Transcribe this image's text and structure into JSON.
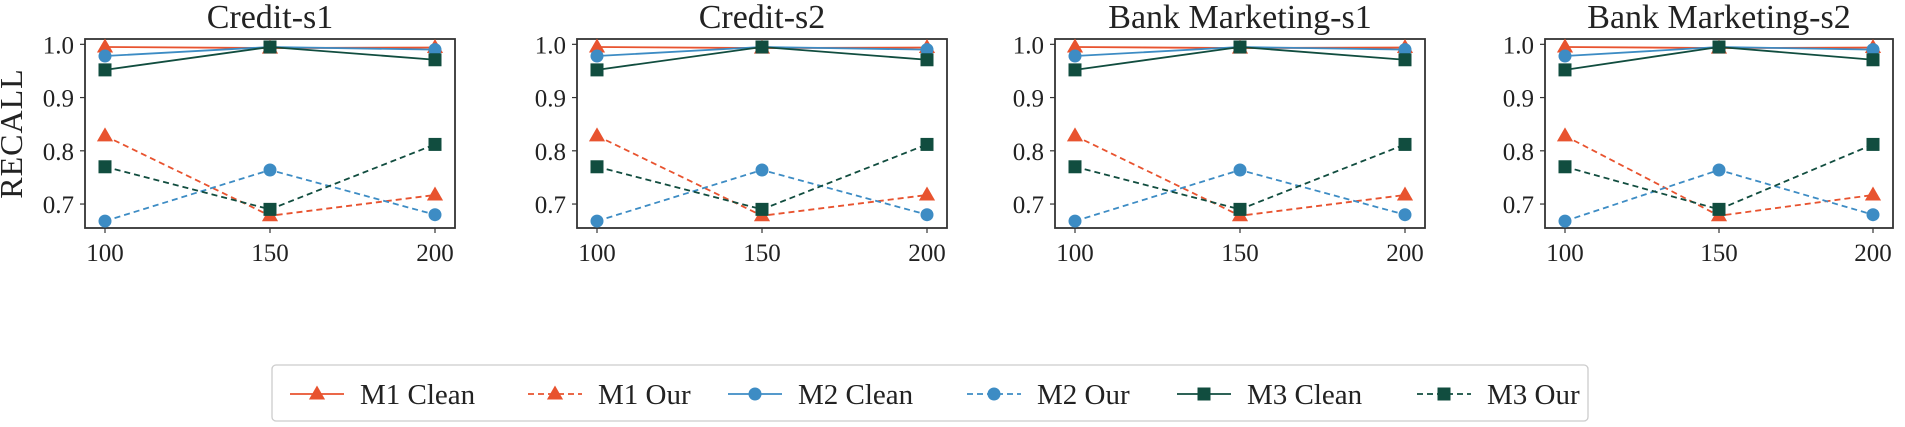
{
  "chart_data": [
    {
      "type": "line",
      "title": "Credit-s1",
      "xlabel": "",
      "ylabel": "RECALL",
      "x": [
        100,
        150,
        200
      ],
      "xticks": [
        "100",
        "150",
        "200"
      ],
      "yticks": [
        "0.7",
        "0.8",
        "0.9",
        "1.0"
      ],
      "xlim": [
        100,
        200
      ],
      "ylim": [
        0.655,
        1.01
      ],
      "series": [
        {
          "name": "M1 Clean",
          "values": [
            0.995,
            0.993,
            0.994
          ]
        },
        {
          "name": "M1 Our",
          "values": [
            0.828,
            0.678,
            0.717
          ]
        },
        {
          "name": "M2 Clean",
          "values": [
            0.978,
            0.995,
            0.99
          ]
        },
        {
          "name": "M2 Our",
          "values": [
            0.668,
            0.764,
            0.68
          ]
        },
        {
          "name": "M3 Clean",
          "values": [
            0.952,
            0.995,
            0.971
          ]
        },
        {
          "name": "M3 Our",
          "values": [
            0.77,
            0.69,
            0.812
          ]
        }
      ]
    },
    {
      "type": "line",
      "title": "Credit-s2",
      "xlabel": "",
      "ylabel": "",
      "x": [
        100,
        150,
        200
      ],
      "xticks": [
        "100",
        "150",
        "200"
      ],
      "yticks": [
        "0.7",
        "0.8",
        "0.9",
        "1.0"
      ],
      "xlim": [
        100,
        200
      ],
      "ylim": [
        0.655,
        1.01
      ],
      "series": [
        {
          "name": "M1 Clean",
          "values": [
            0.995,
            0.993,
            0.994
          ]
        },
        {
          "name": "M1 Our",
          "values": [
            0.828,
            0.678,
            0.717
          ]
        },
        {
          "name": "M2 Clean",
          "values": [
            0.978,
            0.995,
            0.99
          ]
        },
        {
          "name": "M2 Our",
          "values": [
            0.668,
            0.764,
            0.68
          ]
        },
        {
          "name": "M3 Clean",
          "values": [
            0.952,
            0.995,
            0.971
          ]
        },
        {
          "name": "M3 Our",
          "values": [
            0.77,
            0.69,
            0.812
          ]
        }
      ]
    },
    {
      "type": "line",
      "title": "Bank Marketing-s1",
      "xlabel": "",
      "ylabel": "",
      "x": [
        100,
        150,
        200
      ],
      "xticks": [
        "100",
        "150",
        "200"
      ],
      "yticks": [
        "0.7",
        "0.8",
        "0.9",
        "1.0"
      ],
      "xlim": [
        100,
        200
      ],
      "ylim": [
        0.655,
        1.01
      ],
      "series": [
        {
          "name": "M1 Clean",
          "values": [
            0.995,
            0.993,
            0.994
          ]
        },
        {
          "name": "M1 Our",
          "values": [
            0.828,
            0.678,
            0.717
          ]
        },
        {
          "name": "M2 Clean",
          "values": [
            0.978,
            0.995,
            0.99
          ]
        },
        {
          "name": "M2 Our",
          "values": [
            0.668,
            0.764,
            0.68
          ]
        },
        {
          "name": "M3 Clean",
          "values": [
            0.952,
            0.995,
            0.971
          ]
        },
        {
          "name": "M3 Our",
          "values": [
            0.77,
            0.69,
            0.812
          ]
        }
      ]
    },
    {
      "type": "line",
      "title": "Bank Marketing-s2",
      "xlabel": "",
      "ylabel": "",
      "x": [
        100,
        150,
        200
      ],
      "xticks": [
        "100",
        "150",
        "200"
      ],
      "yticks": [
        "0.7",
        "0.8",
        "0.9",
        "1.0"
      ],
      "xlim": [
        100,
        200
      ],
      "ylim": [
        0.655,
        1.01
      ],
      "series": [
        {
          "name": "M1 Clean",
          "values": [
            0.995,
            0.993,
            0.994
          ]
        },
        {
          "name": "M1 Our",
          "values": [
            0.828,
            0.678,
            0.717
          ]
        },
        {
          "name": "M2 Clean",
          "values": [
            0.978,
            0.995,
            0.99
          ]
        },
        {
          "name": "M2 Our",
          "values": [
            0.668,
            0.764,
            0.68
          ]
        },
        {
          "name": "M3 Clean",
          "values": [
            0.952,
            0.995,
            0.971
          ]
        },
        {
          "name": "M3 Our",
          "values": [
            0.77,
            0.69,
            0.812
          ]
        }
      ]
    }
  ],
  "legend": {
    "placement": "bottom-center",
    "items": [
      {
        "label": "M1 Clean",
        "color": "#e8532f",
        "dash": "solid",
        "marker": "triangle"
      },
      {
        "label": "M1 Our",
        "color": "#e8532f",
        "dash": "dashed",
        "marker": "triangle"
      },
      {
        "label": "M2 Clean",
        "color": "#3d8cc4",
        "dash": "solid",
        "marker": "circle"
      },
      {
        "label": "M2 Our",
        "color": "#3d8cc4",
        "dash": "dashed",
        "marker": "circle"
      },
      {
        "label": "M3 Clean",
        "color": "#114d3f",
        "dash": "solid",
        "marker": "square"
      },
      {
        "label": "M3 Our",
        "color": "#114d3f",
        "dash": "dashed",
        "marker": "square"
      }
    ]
  },
  "colors": {
    "frame": "#333333",
    "text": "#222222",
    "legend_border": "#cccccc"
  }
}
